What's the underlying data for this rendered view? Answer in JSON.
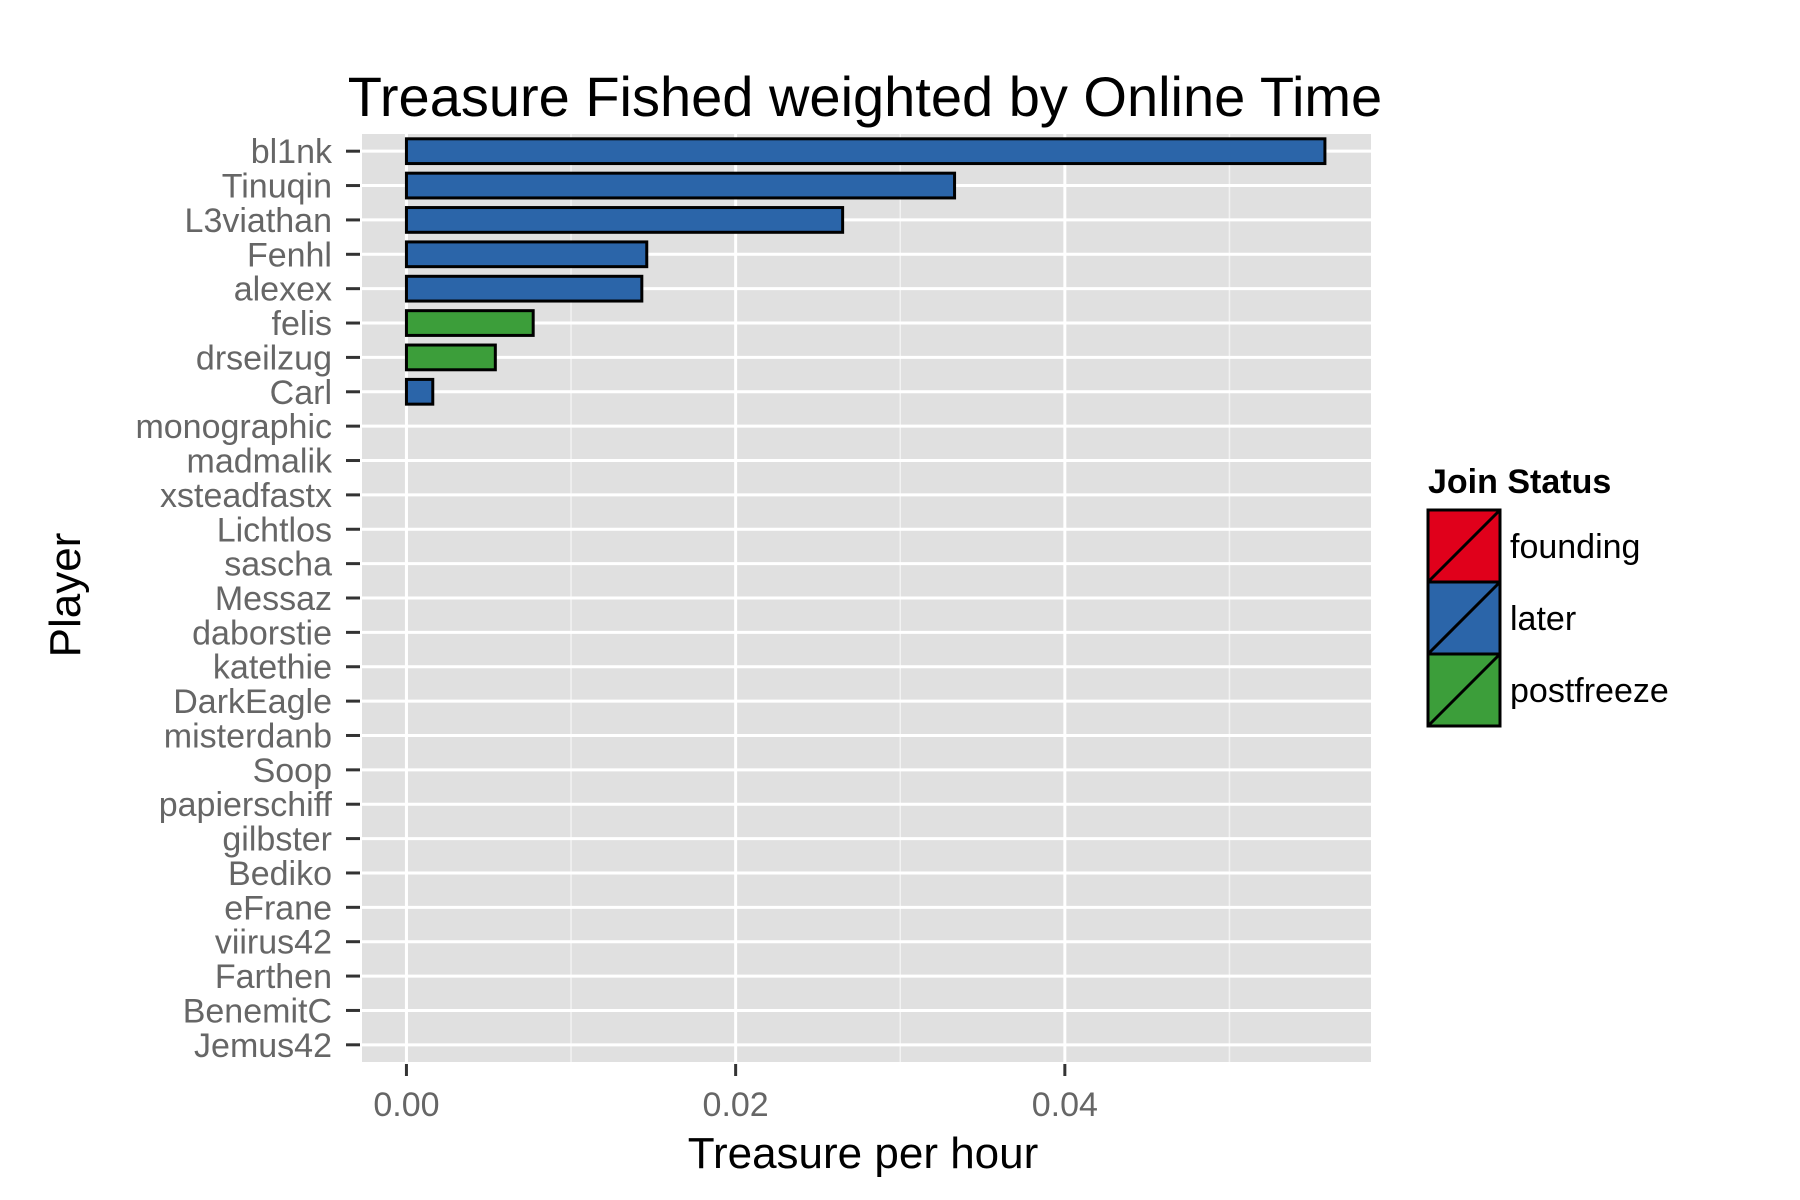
{
  "chart_data": {
    "type": "bar",
    "orientation": "horizontal",
    "title": "Treasure Fished weighted by Online Time",
    "xlabel": "Treasure per hour",
    "ylabel": "Player",
    "xlim": [
      -0.0027,
      0.0586
    ],
    "x_ticks": [
      0.0,
      0.02,
      0.04
    ],
    "x_tick_labels": [
      "0.00",
      "0.02",
      "0.04"
    ],
    "grid": true,
    "background": "#E0E0E0",
    "categories": [
      "bl1nk",
      "Tinuqin",
      "L3viathan",
      "Fenhl",
      "alexex",
      "felis",
      "drseilzug",
      "Carl",
      "monographic",
      "madmalik",
      "xsteadfastx",
      "Lichtlos",
      "sascha",
      "Messaz",
      "daborstie",
      "katethie",
      "DarkEagle",
      "misterdanb",
      "Soop",
      "papierschiff",
      "gilbster",
      "Bediko",
      "eFrane",
      "viirus42",
      "Farthen",
      "BenemitC",
      "Jemus42"
    ],
    "values": [
      0.0558,
      0.0333,
      0.0265,
      0.0146,
      0.0143,
      0.0077,
      0.0054,
      0.0016,
      0,
      0,
      0,
      0,
      0,
      0,
      0,
      0,
      0,
      0,
      0,
      0,
      0,
      0,
      0,
      0,
      0,
      0,
      0
    ],
    "groups": [
      "later",
      "later",
      "later",
      "later",
      "later",
      "postfreeze",
      "postfreeze",
      "later",
      "later",
      "later",
      "later",
      "later",
      "later",
      "later",
      "later",
      "later",
      "later",
      "later",
      "later",
      "later",
      "later",
      "later",
      "later",
      "later",
      "later",
      "later",
      "later"
    ],
    "legend": {
      "title": "Join Status",
      "placement": "right",
      "entries": [
        {
          "name": "founding",
          "color": "#E0001B"
        },
        {
          "name": "later",
          "color": "#2B65A9"
        },
        {
          "name": "postfreeze",
          "color": "#3C9E3A"
        }
      ]
    }
  }
}
